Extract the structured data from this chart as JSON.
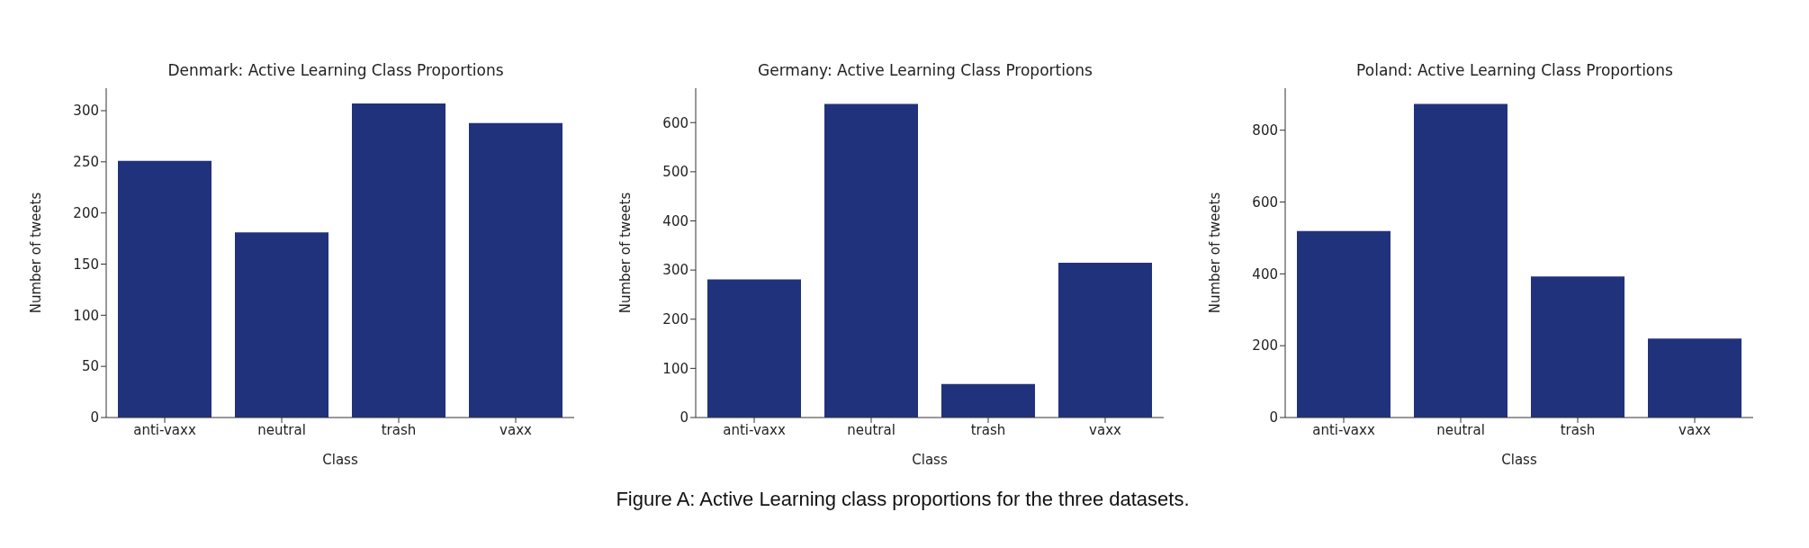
{
  "chart_data": [
    {
      "type": "bar",
      "title": "Denmark: Active Learning Class Proportions",
      "xlabel": "Class",
      "ylabel": "Number of tweets",
      "categories": [
        "anti-vaxx",
        "neutral",
        "trash",
        "vaxx"
      ],
      "values": [
        251,
        181,
        307,
        288
      ],
      "color": "#21327c",
      "ylim": [
        0,
        322
      ],
      "yticks": [
        0,
        50,
        100,
        150,
        200,
        250,
        300
      ]
    },
    {
      "type": "bar",
      "title": "Germany: Active Learning Class Proportions",
      "xlabel": "Class",
      "ylabel": "Number of tweets",
      "categories": [
        "anti-vaxx",
        "neutral",
        "trash",
        "vaxx"
      ],
      "values": [
        281,
        638,
        68,
        315
      ],
      "color": "#21327c",
      "ylim": [
        0,
        670
      ],
      "yticks": [
        0,
        100,
        200,
        300,
        400,
        500,
        600
      ]
    },
    {
      "type": "bar",
      "title": "Poland: Active Learning Class Proportions",
      "xlabel": "Class",
      "ylabel": "Number of tweets",
      "categories": [
        "anti-vaxx",
        "neutral",
        "trash",
        "vaxx"
      ],
      "values": [
        519,
        873,
        393,
        220
      ],
      "color": "#21327c",
      "ylim": [
        0,
        917
      ],
      "yticks": [
        0,
        200,
        400,
        600,
        800
      ],
      "annotations": [
        "Figure A: Active Learning class proportions for the three datasets."
      ]
    }
  ]
}
